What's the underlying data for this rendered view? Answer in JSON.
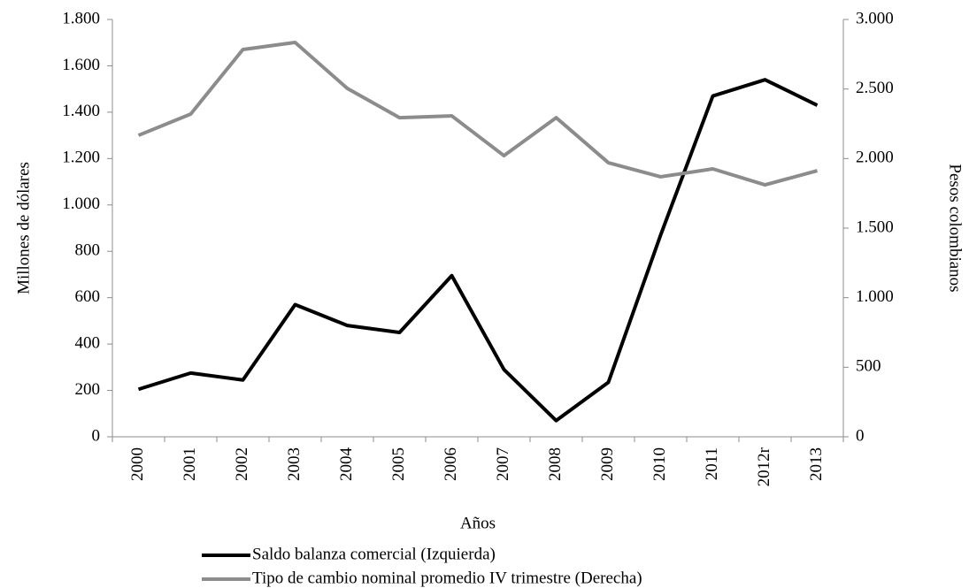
{
  "chart_data": {
    "type": "line",
    "categories": [
      "2000",
      "2001",
      "2002",
      "2003",
      "2004",
      "2005",
      "2006",
      "2007",
      "2008",
      "2009",
      "2010",
      "2011",
      "2012r",
      "2013"
    ],
    "series": [
      {
        "name": "Saldo balanza comercial (Izquierda)",
        "color": "#000000",
        "axis": "y",
        "values": [
          205,
          275,
          245,
          570,
          480,
          450,
          695,
          290,
          70,
          235,
          870,
          1470,
          1540,
          1430
        ]
      },
      {
        "name": "Tipo de cambio nominal promedio IV trimestre (Derecha)",
        "color": "#8c8c8c",
        "axis": "y2",
        "values": [
          2167,
          2320,
          2784,
          2835,
          2504,
          2294,
          2307,
          2021,
          2294,
          1970,
          1869,
          1926,
          1811,
          1913
        ]
      }
    ],
    "xlabel": "Años",
    "ylabel": "Millones de dólares",
    "y2label": "Pesos colombianos",
    "ylim": [
      0,
      1800
    ],
    "yticks": [
      0,
      200,
      400,
      600,
      800,
      {
        "value": 1000,
        "label": "1.000"
      },
      {
        "value": 1200,
        "label": "1.200"
      },
      {
        "value": 1400,
        "label": "1.400"
      },
      {
        "value": 1600,
        "label": "1.600"
      },
      {
        "value": 1800,
        "label": "1.800"
      }
    ],
    "y2lim": [
      0,
      3000
    ],
    "y2ticks": [
      0,
      500,
      {
        "value": 1000,
        "label": "1.000"
      },
      {
        "value": 1500,
        "label": "1.500"
      },
      {
        "value": 2000,
        "label": "2.000"
      },
      {
        "value": 2500,
        "label": "2.500"
      },
      {
        "value": 3000,
        "label": "3.000"
      }
    ],
    "legend": "bottom",
    "grid": false
  }
}
